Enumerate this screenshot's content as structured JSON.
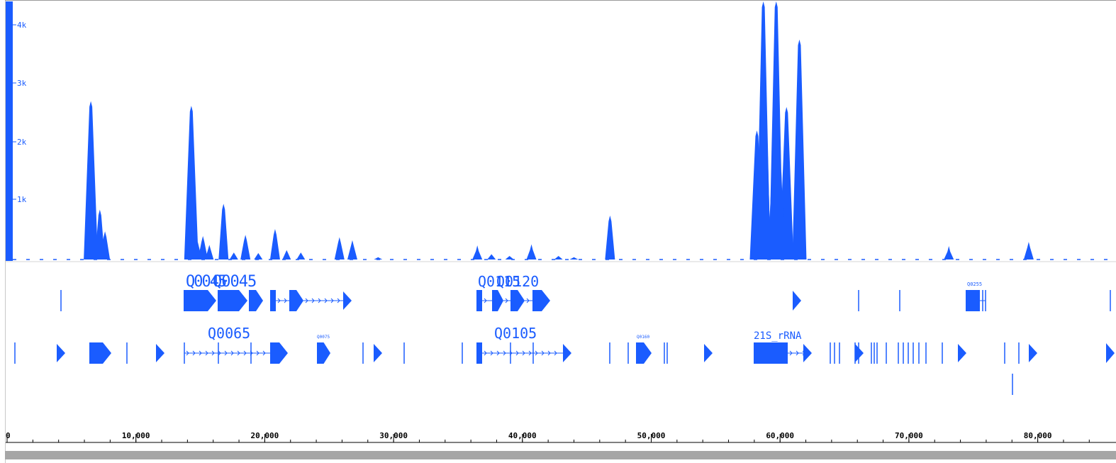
{
  "app": {
    "view": "genome-browser"
  },
  "colors": {
    "accent": "#1a5cff",
    "axis": "#000000",
    "scrollbar": "#a6a6a6"
  },
  "coverage_track": {
    "y_ticks": [
      "1k",
      "2k",
      "3k",
      "4k"
    ]
  },
  "gene_tracks": {
    "row1_labels": {
      "a": "Q0045",
      "b": "Q0115",
      "c": "Q0120",
      "small": "Q0255"
    },
    "row2_labels": {
      "a": "Q0065",
      "b": "Q0105",
      "c": "21S_rRNA",
      "small1": "Q0075",
      "small2": "Q0160"
    }
  },
  "ruler": {
    "ticks": [
      "0",
      "10,000",
      "20,000",
      "30,000",
      "40,000",
      "50,000",
      "60,000",
      "70,000",
      "80,000"
    ]
  },
  "chart_data": {
    "type": "area",
    "xlabel": "",
    "ylabel": "",
    "xlim": [
      0,
      85500
    ],
    "ylim": [
      0,
      4400
    ],
    "y_ticks": [
      1000,
      2000,
      3000,
      4000
    ],
    "x_ticks": [
      0,
      10000,
      20000,
      30000,
      40000,
      50000,
      60000,
      70000,
      80000
    ],
    "peaks": [
      {
        "x": 6500,
        "y": 2700
      },
      {
        "x": 6700,
        "y": 1000
      },
      {
        "x": 7200,
        "y": 850
      },
      {
        "x": 7600,
        "y": 480
      },
      {
        "x": 14300,
        "y": 2620
      },
      {
        "x": 15200,
        "y": 400
      },
      {
        "x": 16800,
        "y": 950
      },
      {
        "x": 18500,
        "y": 420
      },
      {
        "x": 20800,
        "y": 520
      },
      {
        "x": 25800,
        "y": 380
      },
      {
        "x": 26800,
        "y": 330
      },
      {
        "x": 36500,
        "y": 240
      },
      {
        "x": 40700,
        "y": 260
      },
      {
        "x": 46800,
        "y": 750
      },
      {
        "x": 58200,
        "y": 2200
      },
      {
        "x": 58700,
        "y": 4400
      },
      {
        "x": 59700,
        "y": 4400
      },
      {
        "x": 60500,
        "y": 2600
      },
      {
        "x": 61500,
        "y": 3750
      },
      {
        "x": 73100,
        "y": 230
      },
      {
        "x": 79300,
        "y": 300
      }
    ]
  }
}
